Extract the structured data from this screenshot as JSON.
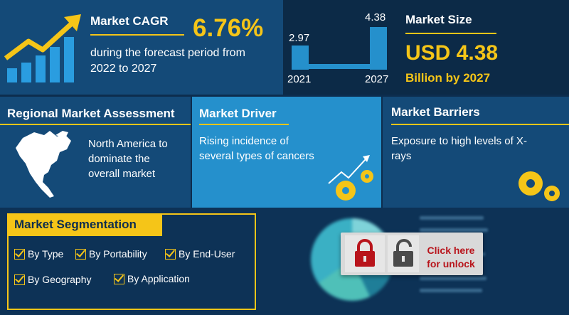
{
  "cagr": {
    "title": "Market CAGR",
    "value": "6.76%",
    "description_line1": "during the forecast period from",
    "description_line2": "2022 to 2027"
  },
  "market_size": {
    "title": "Market Size",
    "value": "USD 4.38",
    "subtitle": "Billion by 2027",
    "chart": {
      "bars": [
        {
          "year": "2021",
          "value": "2.97"
        },
        {
          "year": "2027",
          "value": "4.38"
        }
      ]
    }
  },
  "chart_data": {
    "type": "bar",
    "categories": [
      "2021",
      "2027"
    ],
    "values": [
      2.97,
      4.38
    ],
    "title": "",
    "xlabel": "",
    "ylabel": ""
  },
  "regional": {
    "title": "Regional Market Assessment",
    "line1": "North America to",
    "line2": "dominate the",
    "line3": "overall market"
  },
  "driver": {
    "title": "Market Driver",
    "line1": "Rising incidence of",
    "line2": "several types of cancers"
  },
  "barriers": {
    "title": "Market Barriers",
    "line1": "Exposure to high levels of X-",
    "line2": "rays"
  },
  "segmentation": {
    "title": "Market Segmentation",
    "items": [
      "By Type",
      "By Portability",
      "By End-User",
      "By Geography",
      "By Application"
    ]
  },
  "unlock": {
    "line1": "Click here",
    "line2": "for unlock"
  },
  "colors": {
    "accent": "#f5c518",
    "panel_dark": "#0c2a47",
    "panel_mid": "#144a78",
    "panel_light": "#2590cc",
    "unlock_red": "#b8141b"
  },
  "icons": [
    "growth-arrow-icon",
    "north-america-map-icon",
    "gears-growth-icon",
    "gears-icon",
    "lock-icon",
    "unlock-icon",
    "pie-chart-icon"
  ]
}
